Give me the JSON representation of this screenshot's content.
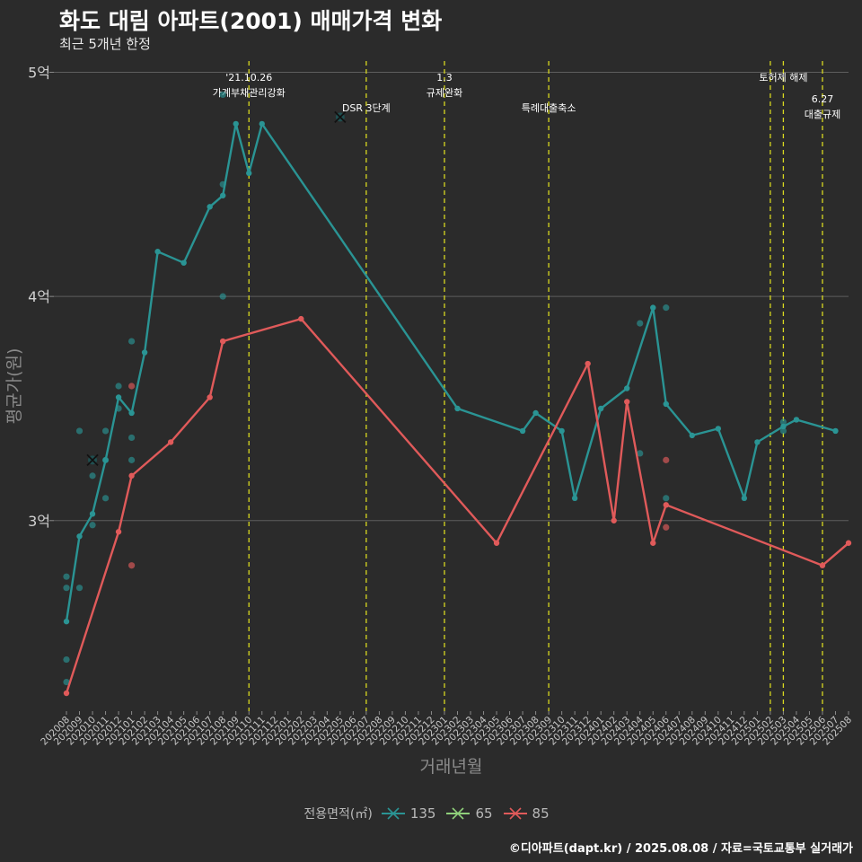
{
  "title": "화도 대림 아파트(2001) 매매가격 변화",
  "subtitle": "최근 5개년 한정",
  "caption": "©디아파트(dapt.kr) / 2025.08.08 / 자료=국토교통부 실거래가",
  "legend": {
    "title": "전용면적(㎡)",
    "items": [
      {
        "label": "135",
        "color": "#2a9494"
      },
      {
        "label": "65",
        "color": "#8fd07a"
      },
      {
        "label": "85",
        "color": "#e05a5a"
      }
    ]
  },
  "chart_data": {
    "type": "line",
    "xlabel": "거래년월",
    "ylabel": "평균가(원)",
    "ylim": [
      2.15,
      5.05
    ],
    "yticks": [
      {
        "v": 3,
        "label": "3억"
      },
      {
        "v": 4,
        "label": "4억"
      },
      {
        "v": 5,
        "label": "5억"
      }
    ],
    "categories": [
      "202008",
      "202009",
      "202010",
      "202011",
      "202012",
      "202101",
      "202102",
      "202103",
      "202104",
      "202105",
      "202106",
      "202107",
      "202108",
      "202109",
      "202110",
      "202111",
      "202112",
      "202201",
      "202202",
      "202203",
      "202204",
      "202205",
      "202206",
      "202207",
      "202208",
      "202209",
      "202210",
      "202211",
      "202212",
      "202301",
      "202302",
      "202303",
      "202304",
      "202305",
      "202306",
      "202307",
      "202308",
      "202309",
      "202310",
      "202311",
      "202312",
      "202401",
      "202402",
      "202403",
      "202404",
      "202405",
      "202406",
      "202407",
      "202408",
      "202409",
      "202410",
      "202411",
      "202412",
      "202501",
      "202502",
      "202503",
      "202504",
      "202505",
      "202506",
      "202507",
      "202508"
    ],
    "grid": true,
    "series": [
      {
        "name": "135",
        "color": "#2a9494",
        "line": [
          [
            0,
            2.55
          ],
          [
            1,
            2.93
          ],
          [
            2,
            3.03
          ],
          [
            3,
            3.27
          ],
          [
            4,
            3.55
          ],
          [
            5,
            3.48
          ],
          [
            6,
            3.75
          ],
          [
            7,
            4.2
          ],
          [
            9,
            4.15
          ],
          [
            11,
            4.4
          ],
          [
            12,
            4.45
          ],
          [
            13,
            4.77
          ],
          [
            14,
            4.55
          ],
          [
            15,
            4.77
          ],
          [
            30,
            3.5
          ],
          [
            35,
            3.4
          ],
          [
            36,
            3.48
          ],
          [
            38,
            3.4
          ],
          [
            39,
            3.1
          ],
          [
            41,
            3.5
          ],
          [
            43,
            3.59
          ],
          [
            45,
            3.95
          ],
          [
            46,
            3.52
          ],
          [
            48,
            3.38
          ],
          [
            50,
            3.41
          ],
          [
            52,
            3.1
          ],
          [
            53,
            3.35
          ],
          [
            55,
            3.42
          ],
          [
            56,
            3.45
          ],
          [
            59,
            3.4
          ]
        ],
        "points": [
          [
            0,
            2.28
          ],
          [
            0,
            2.38
          ],
          [
            0,
            2.7
          ],
          [
            0,
            2.75
          ],
          [
            1,
            3.4
          ],
          [
            1,
            2.7
          ],
          [
            2,
            3.2
          ],
          [
            2,
            2.98
          ],
          [
            3,
            3.1
          ],
          [
            3,
            3.27
          ],
          [
            3,
            3.4
          ],
          [
            4,
            3.5
          ],
          [
            4,
            3.6
          ],
          [
            5,
            3.27
          ],
          [
            5,
            3.37
          ],
          [
            5,
            3.8
          ],
          [
            12,
            4.0
          ],
          [
            12,
            4.5
          ],
          [
            12,
            4.9
          ],
          [
            44,
            3.3
          ],
          [
            44,
            3.88
          ],
          [
            46,
            3.95
          ],
          [
            46,
            3.1
          ],
          [
            55,
            3.4
          ],
          [
            55,
            3.44
          ]
        ]
      },
      {
        "name": "65",
        "color": "#8fd07a",
        "line": [],
        "points": [],
        "crosses": [
          [
            2,
            3.27
          ],
          [
            21,
            4.8
          ]
        ]
      },
      {
        "name": "85",
        "color": "#e05a5a",
        "line": [
          [
            0,
            2.23
          ],
          [
            4,
            2.95
          ],
          [
            5,
            3.2
          ],
          [
            8,
            3.35
          ],
          [
            11,
            3.55
          ],
          [
            12,
            3.8
          ],
          [
            18,
            3.9
          ],
          [
            33,
            2.9
          ],
          [
            40,
            3.7
          ],
          [
            42,
            3.0
          ],
          [
            43,
            3.53
          ],
          [
            45,
            2.9
          ],
          [
            46,
            3.07
          ],
          [
            58,
            2.8
          ],
          [
            60,
            2.9
          ]
        ],
        "points": [
          [
            5,
            2.8
          ],
          [
            5,
            3.6
          ],
          [
            46,
            3.27
          ],
          [
            46,
            2.97
          ]
        ]
      }
    ],
    "events": [
      {
        "x": 14,
        "lines": [
          "'21.10.26",
          "가계부채관리강화"
        ],
        "row": 0
      },
      {
        "x": 23,
        "lines": [
          "DSR 3단계"
        ],
        "row": 1
      },
      {
        "x": 29,
        "lines": [
          "1.3",
          "규제완화"
        ],
        "row": 0
      },
      {
        "x": 37,
        "lines": [
          "특례대출축소"
        ],
        "row": 1
      },
      {
        "x": 54,
        "lines": [],
        "row": 0
      },
      {
        "x": 55,
        "lines": [
          "토허제 해제"
        ],
        "row": 0
      },
      {
        "x": 58,
        "lines": [
          "6.27",
          "대출규제"
        ],
        "row": 2
      }
    ]
  }
}
